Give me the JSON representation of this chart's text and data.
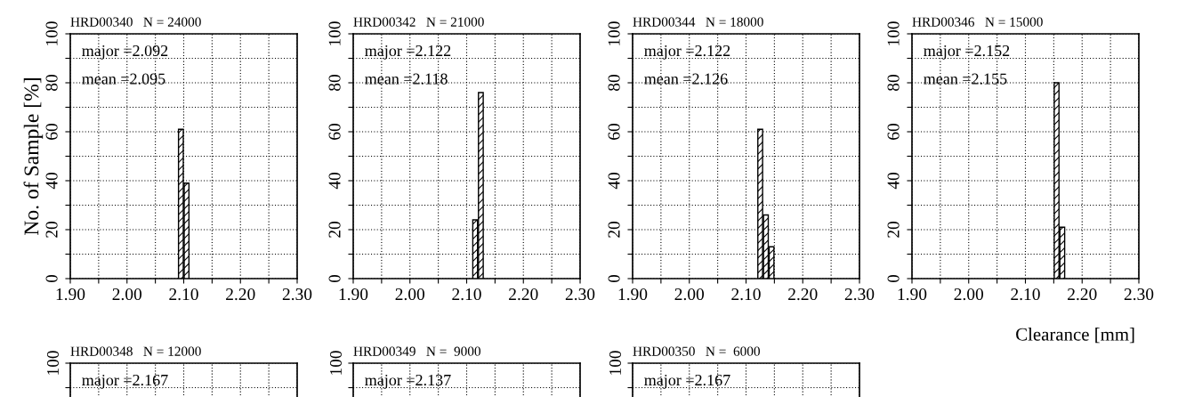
{
  "chart_data": [
    {
      "type": "histogram",
      "title": "HRD00340   N = 24000",
      "ylabel": "No. of Sample [%]",
      "annotations": [
        "major =2.092",
        "mean =2.095"
      ],
      "bins": [
        2.09,
        2.1,
        2.11
      ],
      "values": [
        61,
        39
      ],
      "color": "#000000",
      "xlim": [
        1.9,
        2.3
      ],
      "xticks": [
        {
          "value": 1.9,
          "label": "1.90"
        },
        {
          "value": 1.95,
          "label": null
        },
        {
          "value": 2.0,
          "label": "2.00"
        },
        {
          "value": 2.05,
          "label": null
        },
        {
          "value": 2.1,
          "label": "2.10"
        },
        {
          "value": 2.15,
          "label": null
        },
        {
          "value": 2.2,
          "label": "2.20"
        },
        {
          "value": 2.25,
          "label": null
        },
        {
          "value": 2.3,
          "label": "2.30"
        }
      ],
      "ylim": [
        0,
        100
      ],
      "yticks": [
        0,
        {
          "value": 10,
          "label": null
        },
        20,
        {
          "value": 30,
          "label": null
        },
        40,
        {
          "value": 50,
          "label": null
        },
        60,
        {
          "value": 70,
          "label": null
        },
        80,
        {
          "value": 90,
          "label": null
        },
        100
      ],
      "grid": true
    },
    {
      "type": "histogram",
      "title": "HRD00342   N = 21000",
      "annotations": [
        "major =2.122",
        "mean =2.118"
      ],
      "bins": [
        2.11,
        2.12,
        2.13
      ],
      "values": [
        24,
        76
      ],
      "color": "#000000",
      "xlim": [
        1.9,
        2.3
      ],
      "xticks": [
        {
          "value": 1.9,
          "label": "1.90"
        },
        {
          "value": 1.95,
          "label": null
        },
        {
          "value": 2.0,
          "label": "2.00"
        },
        {
          "value": 2.05,
          "label": null
        },
        {
          "value": 2.1,
          "label": "2.10"
        },
        {
          "value": 2.15,
          "label": null
        },
        {
          "value": 2.2,
          "label": "2.20"
        },
        {
          "value": 2.25,
          "label": null
        },
        {
          "value": 2.3,
          "label": "2.30"
        }
      ],
      "ylim": [
        0,
        100
      ],
      "yticks": [
        0,
        {
          "value": 10,
          "label": null
        },
        20,
        {
          "value": 30,
          "label": null
        },
        40,
        {
          "value": 50,
          "label": null
        },
        60,
        {
          "value": 70,
          "label": null
        },
        80,
        {
          "value": 90,
          "label": null
        },
        100
      ],
      "grid": true
    },
    {
      "type": "histogram",
      "title": "HRD00344   N = 18000",
      "annotations": [
        "major =2.122",
        "mean =2.126"
      ],
      "bins": [
        2.12,
        2.13,
        2.14,
        2.15
      ],
      "values": [
        61,
        26,
        13
      ],
      "color": "#000000",
      "xlim": [
        1.9,
        2.3
      ],
      "xticks": [
        {
          "value": 1.9,
          "label": "1.90"
        },
        {
          "value": 1.95,
          "label": null
        },
        {
          "value": 2.0,
          "label": "2.00"
        },
        {
          "value": 2.05,
          "label": null
        },
        {
          "value": 2.1,
          "label": "2.10"
        },
        {
          "value": 2.15,
          "label": null
        },
        {
          "value": 2.2,
          "label": "2.20"
        },
        {
          "value": 2.25,
          "label": null
        },
        {
          "value": 2.3,
          "label": "2.30"
        }
      ],
      "ylim": [
        0,
        100
      ],
      "yticks": [
        0,
        {
          "value": 10,
          "label": null
        },
        20,
        {
          "value": 30,
          "label": null
        },
        40,
        {
          "value": 50,
          "label": null
        },
        60,
        {
          "value": 70,
          "label": null
        },
        80,
        {
          "value": 90,
          "label": null
        },
        100
      ],
      "grid": true
    },
    {
      "type": "histogram",
      "title": "HRD00346   N = 15000",
      "xlabel": "Clearance [mm]",
      "annotations": [
        "major =2.152",
        "mean =2.155"
      ],
      "bins": [
        2.15,
        2.16,
        2.17
      ],
      "values": [
        80,
        21
      ],
      "color": "#000000",
      "xlim": [
        1.9,
        2.3
      ],
      "xticks": [
        {
          "value": 1.9,
          "label": "1.90"
        },
        {
          "value": 1.95,
          "label": null
        },
        {
          "value": 2.0,
          "label": "2.00"
        },
        {
          "value": 2.05,
          "label": null
        },
        {
          "value": 2.1,
          "label": "2.10"
        },
        {
          "value": 2.15,
          "label": null
        },
        {
          "value": 2.2,
          "label": "2.20"
        },
        {
          "value": 2.25,
          "label": null
        },
        {
          "value": 2.3,
          "label": "2.30"
        }
      ],
      "ylim": [
        0,
        100
      ],
      "yticks": [
        0,
        {
          "value": 10,
          "label": null
        },
        20,
        {
          "value": 30,
          "label": null
        },
        40,
        {
          "value": 50,
          "label": null
        },
        60,
        {
          "value": 70,
          "label": null
        },
        80,
        {
          "value": 90,
          "label": null
        },
        100
      ],
      "grid": true
    },
    {
      "type": "other",
      "title": "HRD00348   N = 12000",
      "annotations": [
        "100",
        "major =2.167"
      ]
    },
    {
      "type": "other",
      "title": "HRD00349   N =  9000",
      "annotations": [
        "100",
        "major =2.137"
      ]
    },
    {
      "type": "other",
      "title": "HRD00350   N =  6000",
      "annotations": [
        "100",
        "major =2.167"
      ]
    }
  ]
}
